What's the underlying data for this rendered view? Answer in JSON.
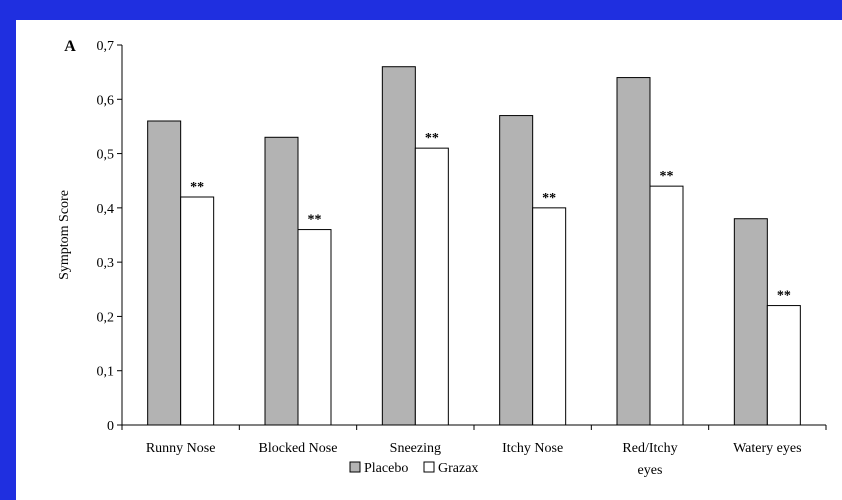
{
  "colors": {
    "background": "#1f2fe0",
    "panel": "#ffffff",
    "placebo": "#b3b3b3",
    "grazax": "#ffffff",
    "stroke": "#000000"
  },
  "chart_data": {
    "type": "bar",
    "panel_label": "A",
    "title": "",
    "xlabel": "",
    "ylabel": "Symptom Score",
    "ylim": [
      0,
      0.7
    ],
    "yticks": [
      "0",
      "0,1",
      "0,2",
      "0,3",
      "0,4",
      "0,5",
      "0,6",
      "0,7"
    ],
    "categories": [
      [
        "Runny Nose"
      ],
      [
        "Blocked Nose"
      ],
      [
        "Sneezing"
      ],
      [
        "Itchy Nose"
      ],
      [
        "Red/Itchy",
        "eyes"
      ],
      [
        "Watery eyes"
      ]
    ],
    "series": [
      {
        "name": "Placebo",
        "values": [
          0.56,
          0.53,
          0.66,
          0.57,
          0.64,
          0.38
        ]
      },
      {
        "name": "Grazax",
        "values": [
          0.42,
          0.36,
          0.51,
          0.4,
          0.44,
          0.22
        ]
      }
    ],
    "annotations": [
      "**",
      "**",
      "**",
      "**",
      "**",
      "**"
    ],
    "grid": false,
    "legend": "bottom"
  }
}
